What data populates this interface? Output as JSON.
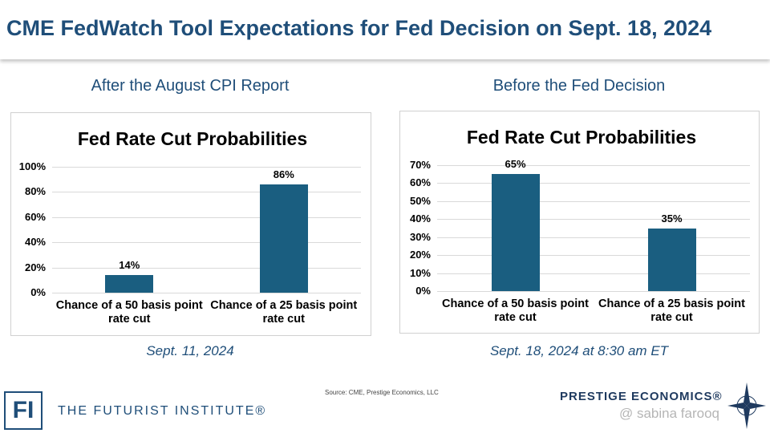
{
  "header": {
    "title": "CME FedWatch Tool Expectations for Fed Decision on Sept. 18, 2024"
  },
  "chart_data": [
    {
      "type": "bar",
      "subtitle": "After the August CPI Report",
      "title": "Fed Rate Cut Probabilities",
      "categories": [
        "Chance of a 50 basis point rate cut",
        "Chance of a 25 basis point rate cut"
      ],
      "values": [
        14,
        86
      ],
      "value_labels": [
        "14%",
        "86%"
      ],
      "color": "#1a5e80",
      "ylim": [
        0,
        100
      ],
      "yticks": [
        {
          "value": 0,
          "label": "0%"
        },
        {
          "value": 20,
          "label": "20%"
        },
        {
          "value": 40,
          "label": "40%"
        },
        {
          "value": 60,
          "label": "60%"
        },
        {
          "value": 80,
          "label": "80%"
        },
        {
          "value": 100,
          "label": "100%"
        }
      ],
      "grid": true,
      "caption": "Sept. 11, 2024"
    },
    {
      "type": "bar",
      "subtitle": "Before the Fed Decision",
      "title": "Fed Rate Cut Probabilities",
      "categories": [
        "Chance of a 50 basis point rate cut",
        "Chance of a 25 basis point rate cut"
      ],
      "values": [
        65,
        35
      ],
      "value_labels": [
        "65%",
        "35%"
      ],
      "color": "#1a5e80",
      "ylim": [
        0,
        70
      ],
      "yticks": [
        {
          "value": 0,
          "label": "0%"
        },
        {
          "value": 10,
          "label": "10%"
        },
        {
          "value": 20,
          "label": "20%"
        },
        {
          "value": 30,
          "label": "30%"
        },
        {
          "value": 40,
          "label": "40%"
        },
        {
          "value": 50,
          "label": "50%"
        },
        {
          "value": 60,
          "label": "60%"
        },
        {
          "value": 70,
          "label": "70%"
        }
      ],
      "grid": true,
      "caption": "Sept. 18, 2024 at 8:30 am ET"
    }
  ],
  "footer": {
    "source": "Source: CME, Prestige Economics, LLC",
    "logo_left_mark": "FI",
    "logo_left": "THE FUTURIST INSTITUTE®",
    "logo_right": "PRESTIGE ECONOMICS®",
    "watermark": "@ sabina farooq"
  }
}
